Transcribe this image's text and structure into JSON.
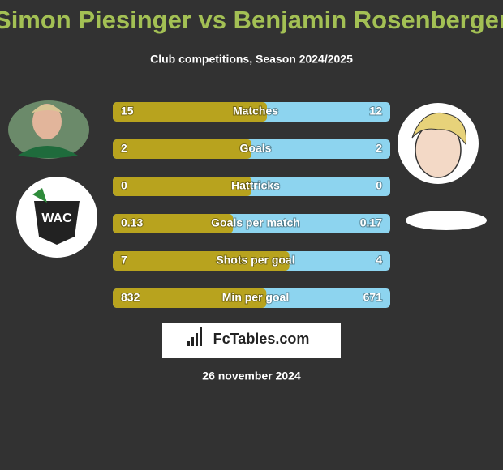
{
  "title": "Simon Piesinger vs Benjamin Rosenberger",
  "subtitle": "Club competitions, Season 2024/2025",
  "rows": [
    {
      "label": "Matches",
      "left": 15,
      "right": 12
    },
    {
      "label": "Goals",
      "left": 2,
      "right": 2
    },
    {
      "label": "Hattricks",
      "left": 0,
      "right": 0
    },
    {
      "label": "Goals per match",
      "left": 0.13,
      "right": 0.17
    },
    {
      "label": "Shots per goal",
      "left": 7,
      "right": 4
    },
    {
      "label": "Min per goal",
      "left": 832,
      "right": 671
    }
  ],
  "logo": "FcTables.com",
  "date": "26 november 2024"
}
